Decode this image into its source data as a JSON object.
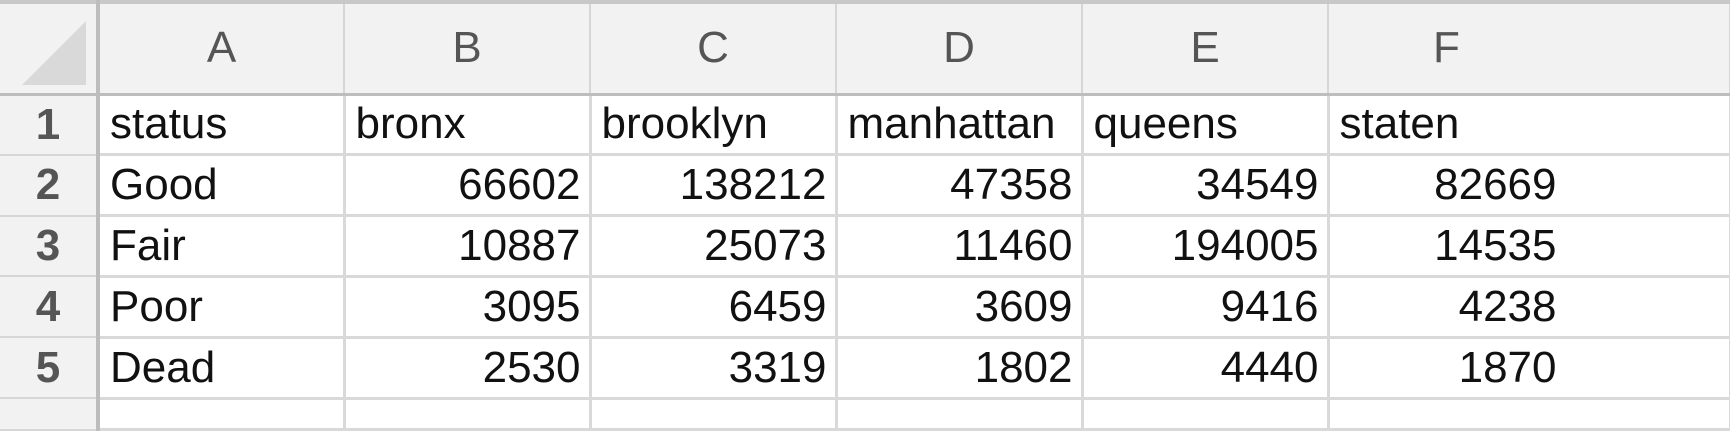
{
  "columns": [
    "A",
    "B",
    "C",
    "D",
    "E",
    "F"
  ],
  "rows": [
    {
      "num": "1",
      "cells": [
        "status",
        "bronx",
        "brooklyn",
        "manhattan",
        "queens",
        "staten"
      ],
      "types": [
        "text",
        "text",
        "text",
        "text",
        "text",
        "text"
      ]
    },
    {
      "num": "2",
      "cells": [
        "Good",
        "66602",
        "138212",
        "47358",
        "34549",
        "82669"
      ],
      "types": [
        "text",
        "num",
        "num",
        "num",
        "num",
        "num"
      ]
    },
    {
      "num": "3",
      "cells": [
        "Fair",
        "10887",
        "25073",
        "11460",
        "194005",
        "14535"
      ],
      "types": [
        "text",
        "num",
        "num",
        "num",
        "num",
        "num"
      ]
    },
    {
      "num": "4",
      "cells": [
        "Poor",
        "3095",
        "6459",
        "3609",
        "9416",
        "4238"
      ],
      "types": [
        "text",
        "num",
        "num",
        "num",
        "num",
        "num"
      ]
    },
    {
      "num": "5",
      "cells": [
        "Dead",
        "2530",
        "3319",
        "1802",
        "4440",
        "1870"
      ],
      "types": [
        "text",
        "num",
        "num",
        "num",
        "num",
        "num"
      ]
    }
  ]
}
